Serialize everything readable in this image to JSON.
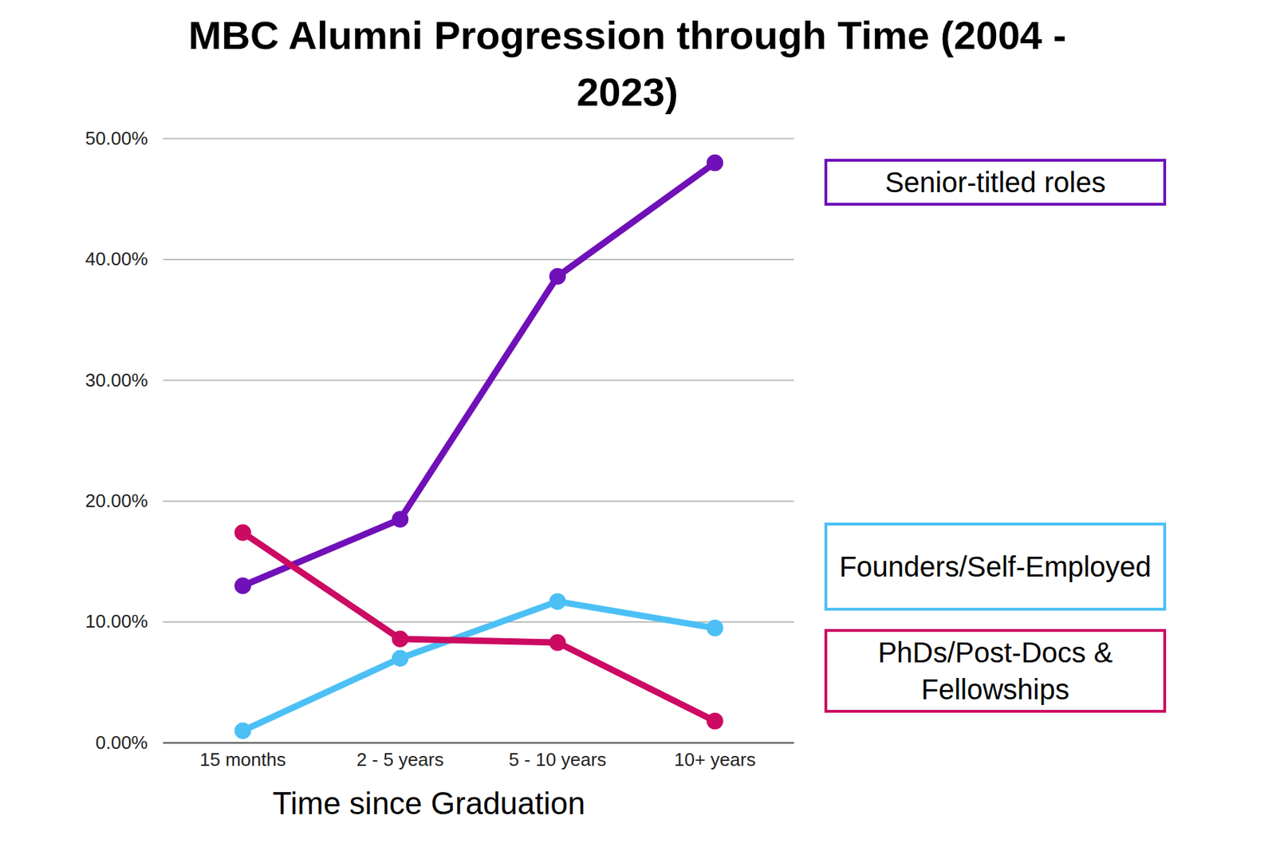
{
  "chart_data": {
    "type": "line",
    "title": "MBC Alumni Progression through Time (2004 - 2023)",
    "xlabel": "Time since Graduation",
    "categories": [
      "15 months",
      "2 - 5 years",
      "5 - 10 years",
      "10+ years"
    ],
    "series": [
      {
        "name": "Senior-titled roles",
        "color": "#7010b8",
        "marker": "circle",
        "values": [
          13.0,
          18.5,
          38.6,
          48.0
        ]
      },
      {
        "name": "Founders/Self-Employed",
        "color": "#4cc0f5",
        "marker": "circle",
        "values": [
          1.0,
          7.0,
          11.7,
          9.5
        ]
      },
      {
        "name": "PhDs/Post-Docs & Fellowships",
        "color": "#cc0a62",
        "marker": "circle",
        "values": [
          17.4,
          8.6,
          8.3,
          1.8
        ]
      }
    ],
    "ylim": [
      0,
      50
    ],
    "yticks": [
      {
        "value": 0,
        "label": "0.00%"
      },
      {
        "value": 10,
        "label": "10.00%"
      },
      {
        "value": 20,
        "label": "20.00%"
      },
      {
        "value": 30,
        "label": "30.00%"
      },
      {
        "value": 40,
        "label": "40.00%"
      },
      {
        "value": 50,
        "label": "50.00%"
      }
    ],
    "grid": true,
    "legend": "right"
  }
}
